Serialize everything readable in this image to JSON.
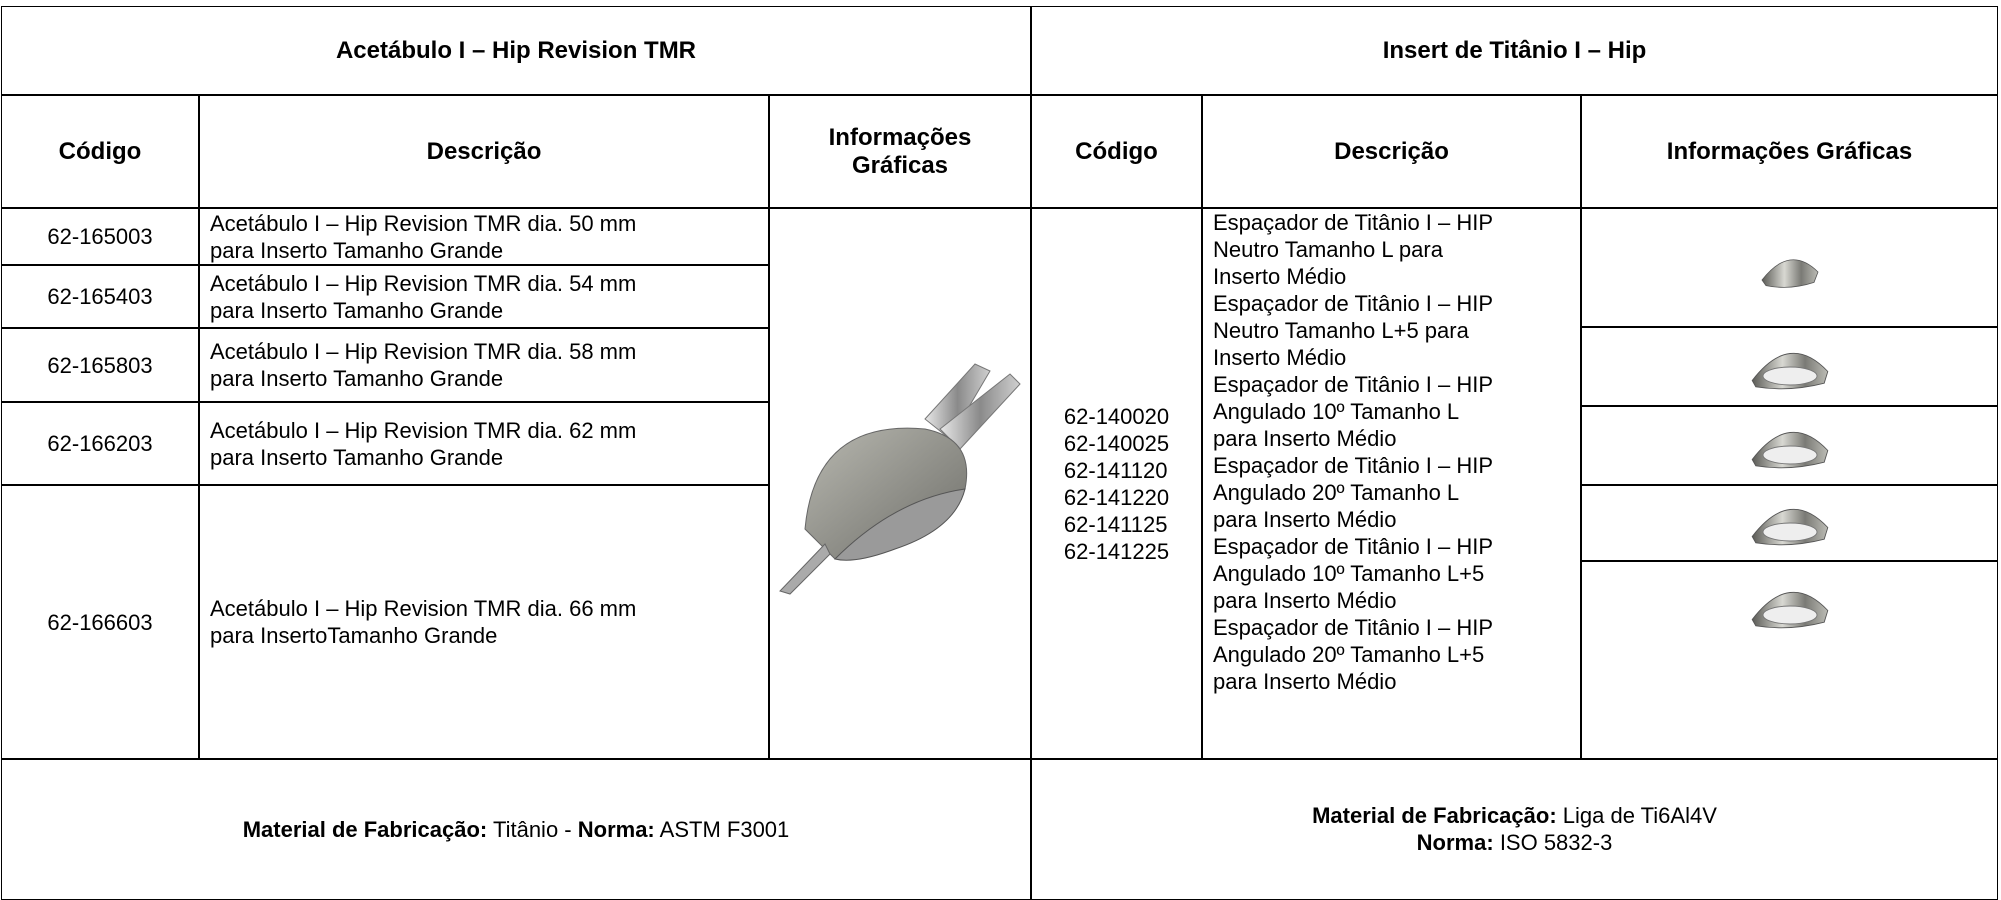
{
  "left": {
    "title": "Acetábulo I – Hip Revision TMR",
    "headers": [
      "Código",
      "Descrição",
      "Informações Gráficas"
    ],
    "rows": [
      {
        "code": "62-165003",
        "description": [
          "Acetábulo I – Hip Revision TMR dia. 50 mm",
          "para Inserto Tamanho Grande"
        ]
      },
      {
        "code": "62-165403",
        "description": [
          "Acetábulo I – Hip Revision TMR dia. 54 mm",
          "para Inserto Tamanho Grande"
        ]
      },
      {
        "code": "62-165803",
        "description": [
          "Acetábulo I – Hip Revision TMR dia. 58 mm",
          "para Inserto Tamanho Grande"
        ]
      },
      {
        "code": "62-166203",
        "description": [
          "Acetábulo I – Hip Revision TMR dia. 62 mm",
          "para Inserto Tamanho Grande"
        ]
      },
      {
        "code": "62-166603",
        "description": [
          "Acetábulo I – Hip Revision TMR dia. 66 mm",
          "para InsertoTamanho Grande"
        ]
      }
    ],
    "footer": {
      "material_label": "Material de Fabricação:",
      "material": "Titânio -",
      "norma_label": "Norma:",
      "norma": "ASTM F3001"
    }
  },
  "right": {
    "title": "Insert de Titânio I – Hip",
    "headers": [
      "Código",
      "Descrição",
      "Informações Gráficas"
    ],
    "codes": [
      "62-140020",
      "62-140025",
      "62-141120",
      "62-141220",
      "62-141125",
      "62-141225"
    ],
    "descriptions": [
      [
        "Espaçador de Titânio I – HIP",
        "Neutro Tamanho L para",
        "Inserto Médio"
      ],
      [
        "Espaçador de Titânio I – HIP",
        "Neutro Tamanho L+5 para",
        "Inserto Médio"
      ],
      [
        "Espaçador de Titânio I – HIP",
        "Angulado 10º Tamanho L",
        "para Inserto Médio"
      ],
      [
        "Espaçador de Titânio I – HIP",
        "Angulado 20º Tamanho L",
        "para Inserto Médio"
      ],
      [
        "Espaçador de Titânio I – HIP",
        "Angulado 10º Tamanho L+5",
        "para Inserto Médio"
      ],
      [
        "Espaçador de Titânio I – HIP",
        "Angulado 20º Tamanho L+5",
        "para Inserto Médio"
      ]
    ],
    "footer": {
      "material_label": "Material de Fabricação:",
      "material": "Liga de Ti6Al4V",
      "norma_label": "Norma:",
      "norma": "ISO 5832-3"
    }
  }
}
